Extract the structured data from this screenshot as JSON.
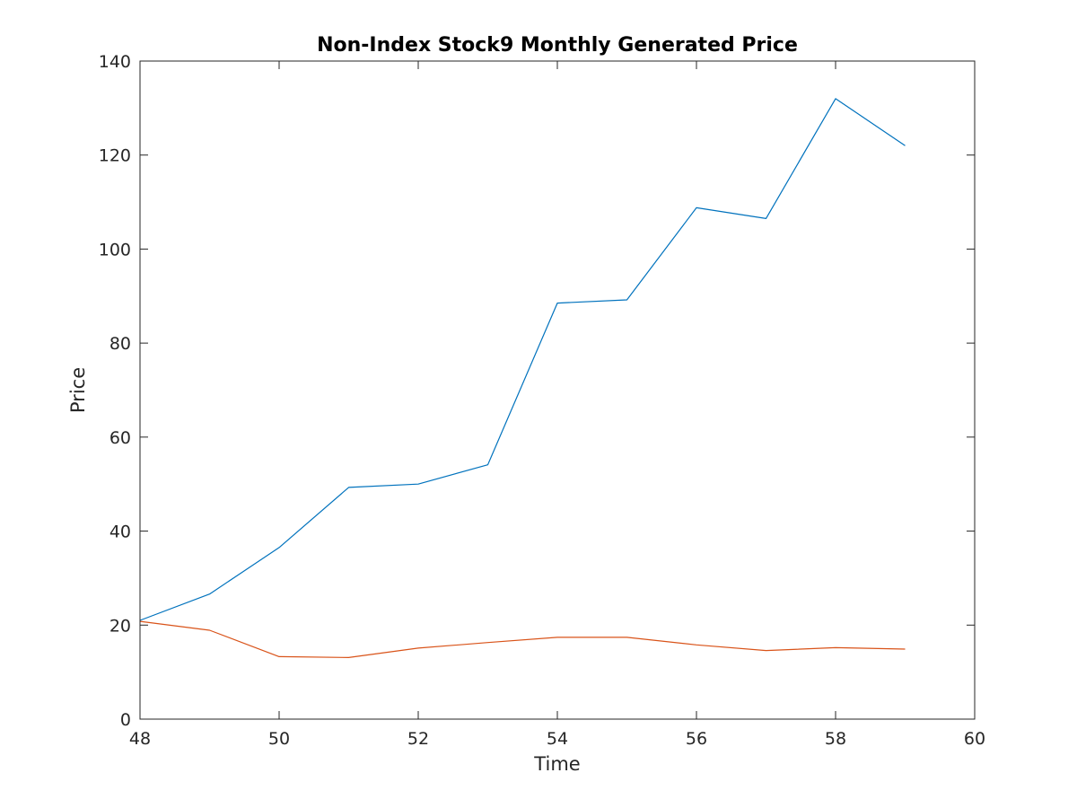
{
  "chart_data": {
    "type": "line",
    "title": "Non-Index Stock9 Monthly Generated Price",
    "xlabel": "Time",
    "ylabel": "Price",
    "xlim": [
      48,
      60
    ],
    "ylim": [
      0,
      140
    ],
    "xticks": [
      48,
      50,
      52,
      54,
      56,
      58,
      60
    ],
    "yticks": [
      0,
      20,
      40,
      60,
      80,
      100,
      120,
      140
    ],
    "grid": false,
    "legend": "none",
    "x": [
      48,
      49,
      50,
      51,
      52,
      53,
      54,
      55,
      56,
      57,
      58,
      59
    ],
    "series": [
      {
        "color": "#0072BD",
        "values": [
          21.0,
          26.6,
          36.5,
          49.3,
          50.0,
          54.1,
          88.5,
          89.2,
          108.8,
          106.5,
          132.0,
          122.0
        ]
      },
      {
        "color": "#D95319",
        "values": [
          20.8,
          18.9,
          13.3,
          13.1,
          15.1,
          16.3,
          17.4,
          17.4,
          15.8,
          14.6,
          15.2,
          14.9
        ]
      }
    ]
  }
}
